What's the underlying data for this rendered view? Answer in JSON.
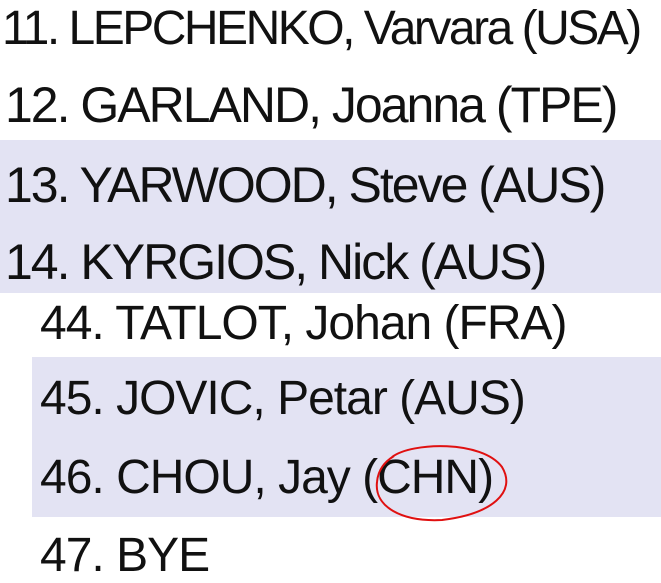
{
  "group_one": [
    {
      "entry": "11. LEPCHENKO, Varvara (USA)",
      "shaded": false
    },
    {
      "entry": "12. GARLAND, Joanna (TPE)",
      "shaded": false
    },
    {
      "entry": "13. YARWOOD, Steve (AUS)",
      "shaded": true
    },
    {
      "entry": "14. KYRGIOS, Nick (AUS)",
      "shaded": true
    }
  ],
  "group_two": [
    {
      "entry": "44. TATLOT, Johan (FRA)",
      "shaded": false
    },
    {
      "entry": "45. JOVIC, Petar (AUS)",
      "shaded": true
    },
    {
      "entry": "46. CHOU, Jay (CHN)",
      "shaded": true
    },
    {
      "entry": "47. BYE",
      "shaded": false
    }
  ],
  "colors": {
    "row_shade": "#e3e3f3",
    "annotation": "#e01010"
  },
  "annotation": {
    "type": "hand-drawn circle",
    "target": "(CHN)"
  }
}
